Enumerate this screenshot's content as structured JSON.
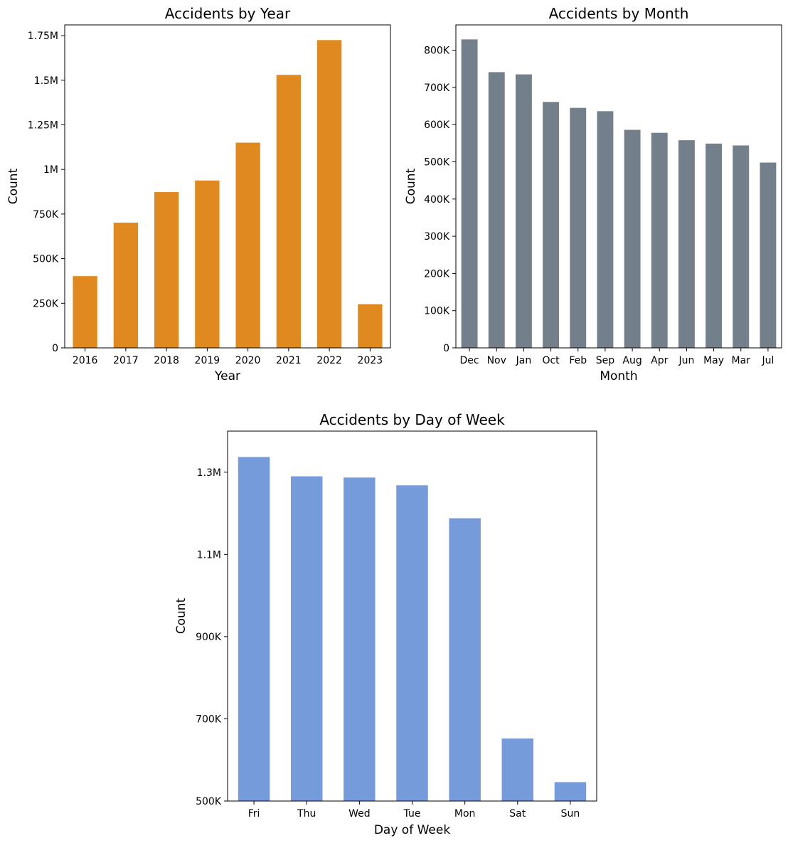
{
  "colors": {
    "year_bars": "#e0891f",
    "month_bars": "#737f8a",
    "day_bars": "#769bdb"
  },
  "chart_data": [
    {
      "id": "year",
      "type": "bar",
      "title": "Accidents by Year",
      "xlabel": "Year",
      "ylabel": "Count",
      "categories": [
        "2016",
        "2017",
        "2018",
        "2019",
        "2020",
        "2021",
        "2022",
        "2023"
      ],
      "values": [
        402000,
        702000,
        873000,
        938000,
        1150000,
        1530000,
        1725000,
        245000
      ],
      "ylim": [
        0,
        1810000
      ],
      "yticks": [
        0,
        250000,
        500000,
        750000,
        1000000,
        1250000,
        1500000,
        1750000
      ],
      "ytick_labels": [
        "0",
        "250K",
        "500K",
        "750K",
        "1M",
        "1.25M",
        "1.5M",
        "1.75M"
      ],
      "grid": false,
      "color_key": "year_bars"
    },
    {
      "id": "month",
      "type": "bar",
      "title": "Accidents by Month",
      "xlabel": "Month",
      "ylabel": "Count",
      "categories": [
        "Dec",
        "Nov",
        "Jan",
        "Oct",
        "Feb",
        "Sep",
        "Aug",
        "Apr",
        "Jun",
        "May",
        "Mar",
        "Jul"
      ],
      "values": [
        829000,
        741000,
        735000,
        661000,
        645000,
        636000,
        586000,
        578000,
        558000,
        549000,
        544000,
        498000
      ],
      "ylim": [
        0,
        868000
      ],
      "yticks": [
        0,
        100000,
        200000,
        300000,
        400000,
        500000,
        600000,
        700000,
        800000
      ],
      "ytick_labels": [
        "0",
        "100K",
        "200K",
        "300K",
        "400K",
        "500K",
        "600K",
        "700K",
        "800K"
      ],
      "grid": false,
      "color_key": "month_bars"
    },
    {
      "id": "day",
      "type": "bar",
      "title": "Accidents by Day of Week",
      "xlabel": "Day of Week",
      "ylabel": "Count",
      "categories": [
        "Fri",
        "Thu",
        "Wed",
        "Tue",
        "Mon",
        "Sat",
        "Sun"
      ],
      "values": [
        1337000,
        1290000,
        1287000,
        1268000,
        1188000,
        652000,
        546000
      ],
      "ylim": [
        500000,
        1400000
      ],
      "yticks": [
        500000,
        700000,
        900000,
        1100000,
        1300000
      ],
      "ytick_labels": [
        "500K",
        "700K",
        "900K",
        "1.1M",
        "1.3M"
      ],
      "grid": false,
      "color_key": "day_bars"
    }
  ]
}
